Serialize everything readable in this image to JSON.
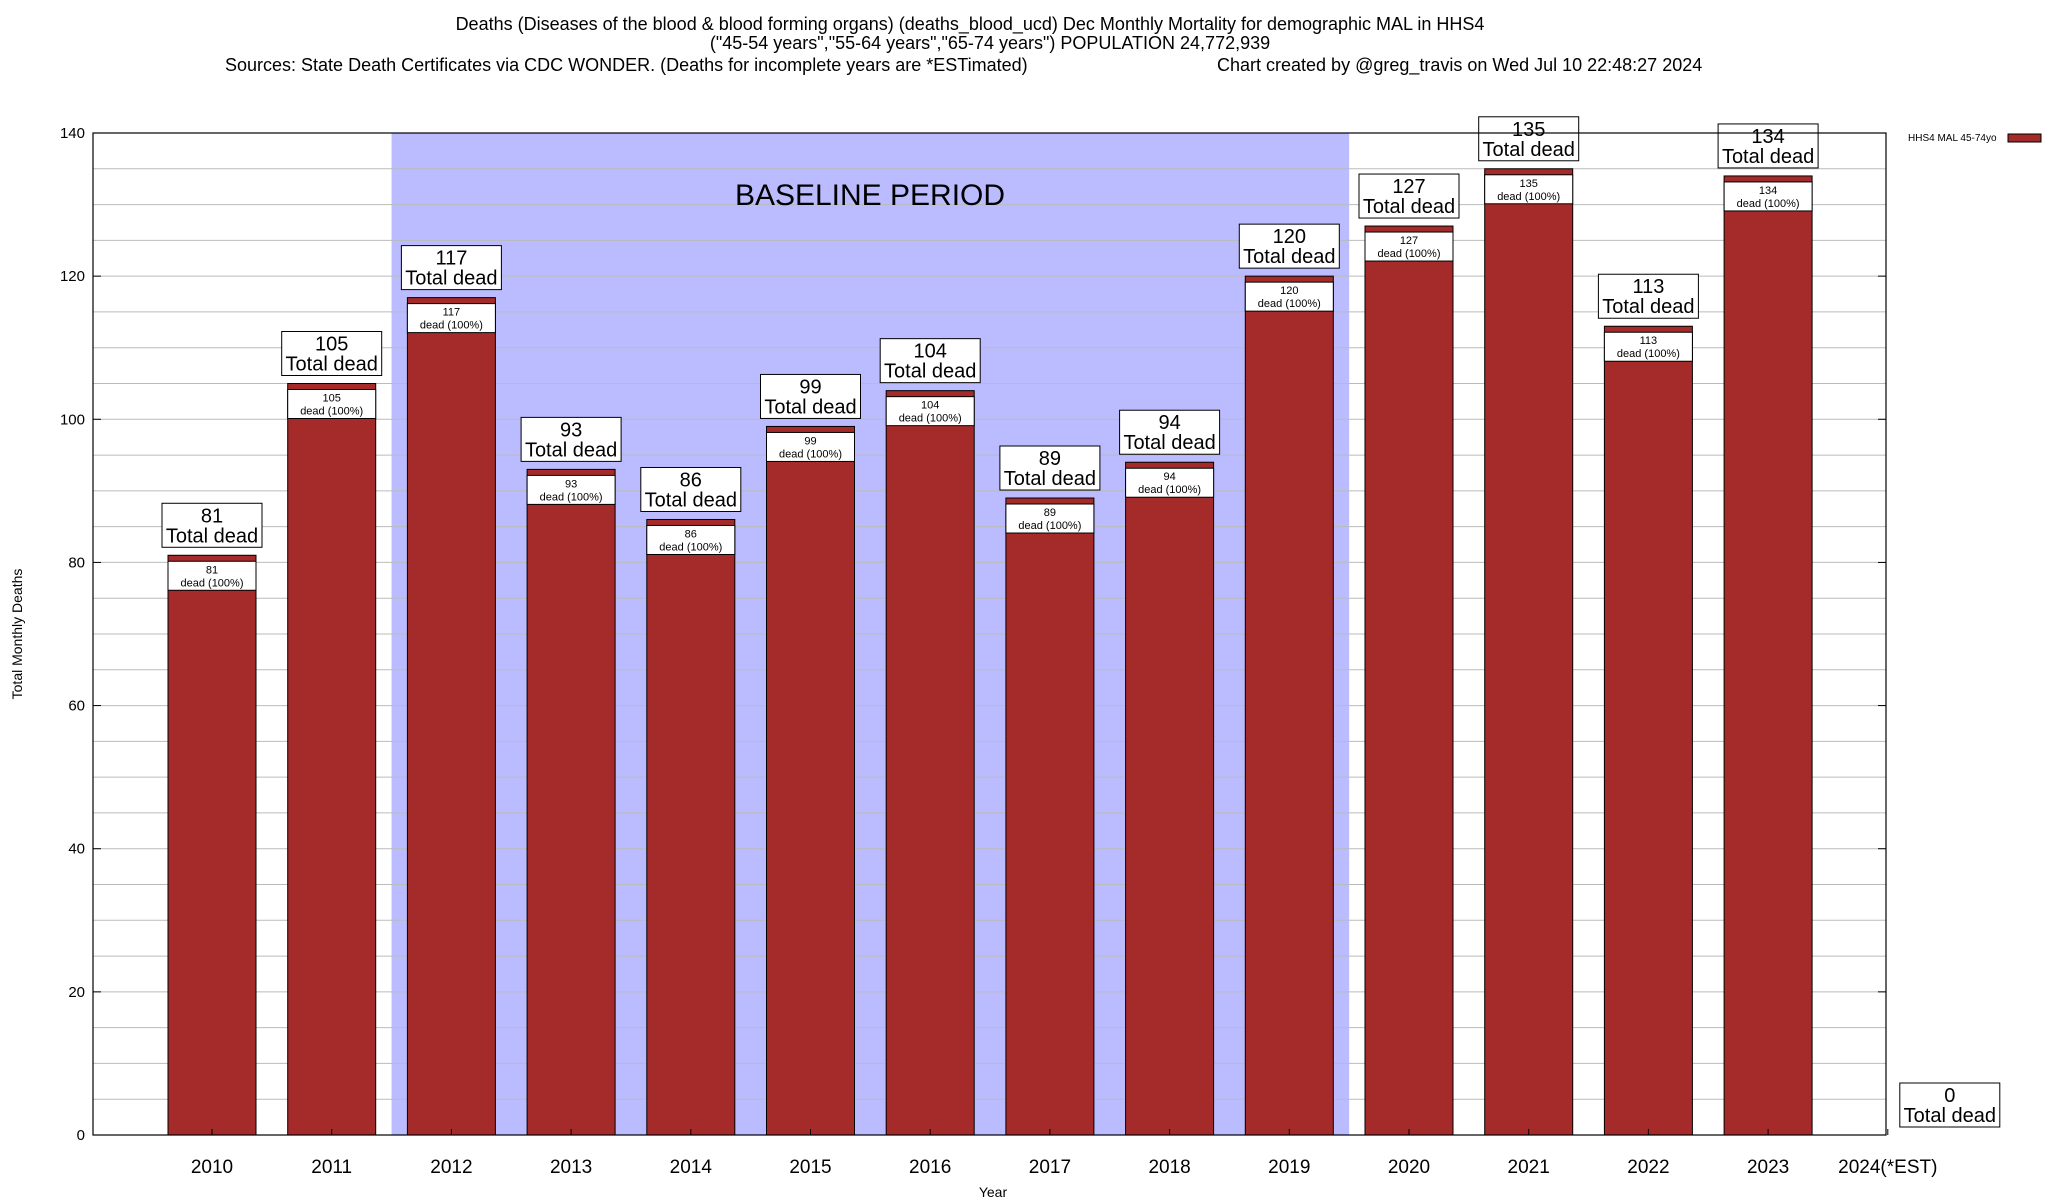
{
  "chart_data": {
    "type": "bar",
    "title_lines": [
      "Deaths (Diseases of the blood & blood forming organs) (deaths_blood_ucd) Dec Monthly Mortality for demographic MAL in HHS4",
      "(\"45-54 years\",\"55-64 years\",\"65-74 years\") POPULATION 24,772,939",
      "Sources: State Death Certificates via CDC WONDER. (Deaths for incomplete years are *ESTimated)"
    ],
    "credit": "Chart created by @greg_travis on Wed Jul 10 22:48:27 2024",
    "xlabel": "Year",
    "ylabel": "Total Monthly Deaths",
    "ylim": [
      0,
      140
    ],
    "yticks": [
      0,
      20,
      40,
      60,
      80,
      100,
      120,
      140
    ],
    "categories": [
      "2010",
      "2011",
      "2012",
      "2013",
      "2014",
      "2015",
      "2016",
      "2017",
      "2018",
      "2019",
      "2020",
      "2021",
      "2022",
      "2023",
      "2024(*EST)"
    ],
    "series": [
      {
        "name": "HHS4 MAL 45-74yo",
        "color": "#a52a2a",
        "values": [
          81,
          105,
          117,
          93,
          86,
          99,
          104,
          89,
          94,
          120,
          127,
          135,
          113,
          134,
          0
        ]
      }
    ],
    "total_label": "Total dead",
    "inner_label": "dead (100%)",
    "baseline": {
      "label": "BASELINE PERIOD",
      "from": "2012",
      "to": "2019",
      "color": "#bbbbff"
    },
    "legend_position": "top-right",
    "grid": true
  }
}
